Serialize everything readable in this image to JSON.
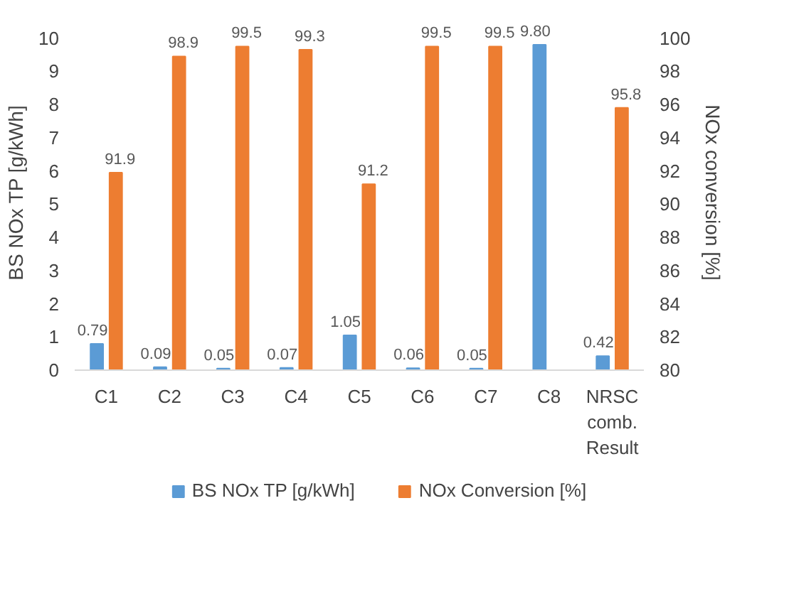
{
  "chart_data": {
    "type": "bar",
    "ylabel": "BS NOx TP [g/kWh]",
    "y2label": "NOx conversion [%]",
    "categories": [
      "C1",
      "C2",
      "C3",
      "C4",
      "C5",
      "C6",
      "C7",
      "C8",
      "NRSC comb. Result"
    ],
    "series": [
      {
        "name": "BS NOx TP [g/kWh]",
        "color": "#5b9bd5",
        "values": [
          0.79,
          0.09,
          0.05,
          0.07,
          1.05,
          0.06,
          0.05,
          9.8,
          0.42
        ],
        "value_labels": [
          "0.79",
          "0.09",
          "0.05",
          "0.07",
          "1.05",
          "0.06",
          "0.05",
          "9.80",
          "0.42"
        ]
      },
      {
        "name": "NOx Conversion [%]",
        "color": "#ed7d31",
        "axis": "y2",
        "values": [
          91.9,
          98.9,
          99.5,
          99.3,
          91.2,
          99.5,
          99.5,
          null,
          95.8
        ],
        "value_labels": [
          "91.9",
          "98.9",
          "99.5",
          "99.3",
          "91.2",
          "99.5",
          "99.5",
          null,
          "95.8"
        ]
      }
    ],
    "ylim": [
      0,
      10
    ],
    "yticks": [
      0,
      1,
      2,
      3,
      4,
      5,
      6,
      7,
      8,
      9,
      10
    ],
    "y2lim": [
      80,
      100
    ],
    "y2ticks": [
      80,
      82,
      84,
      86,
      88,
      90,
      92,
      94,
      96,
      98,
      100
    ],
    "grid": false,
    "legend": "bottom"
  }
}
